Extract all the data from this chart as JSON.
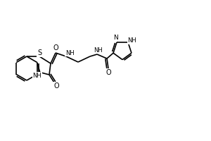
{
  "bg_color": "#ffffff",
  "line_color": "#000000",
  "lw": 1.2,
  "fs": 6.5,
  "fig_width": 3.0,
  "fig_height": 2.0,
  "dpi": 100,
  "xlim": [
    0,
    300
  ],
  "ylim": [
    0,
    200
  ]
}
